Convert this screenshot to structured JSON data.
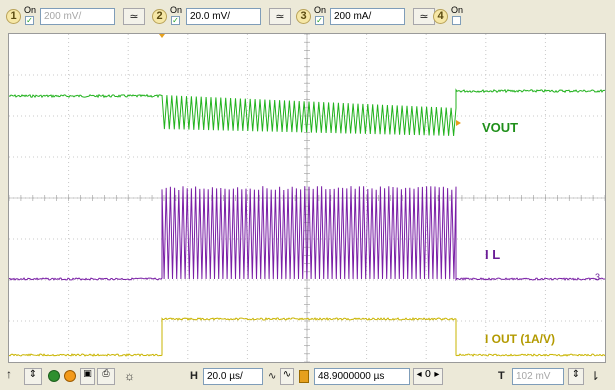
{
  "channels": [
    {
      "number": "1",
      "on_label": "On",
      "scale": "200 mV/",
      "coupling_icon": "dc-coupling-icon",
      "scale_dim": true,
      "checked": true
    },
    {
      "number": "2",
      "on_label": "On",
      "scale": "20.0 mV/",
      "coupling_icon": "ac-coupling-icon",
      "scale_dim": false,
      "checked": true
    },
    {
      "number": "3",
      "on_label": "On",
      "scale": "200 mA/",
      "coupling_icon": "dc-coupling-icon",
      "scale_dim": false,
      "checked": true
    },
    {
      "number": "4",
      "on_label": "On",
      "checked": false
    }
  ],
  "trace_labels": {
    "vout": "VOUT",
    "il": "I L",
    "iout": "I OUT (1A/V)"
  },
  "colors": {
    "vout": "#22b21e",
    "il": "#7a1fa6",
    "iout": "#c9b400",
    "label_green": "#1f8f1a",
    "label_purple": "#6a1c96",
    "label_gold": "#b39a00"
  },
  "timebase": {
    "h_label": "H",
    "h_scale": "20.0 µs/",
    "position": "48.9000000 µs",
    "trigger_label": "T",
    "trigger_level": "102 mV"
  },
  "markers": {
    "ch3_marker": "3"
  }
}
